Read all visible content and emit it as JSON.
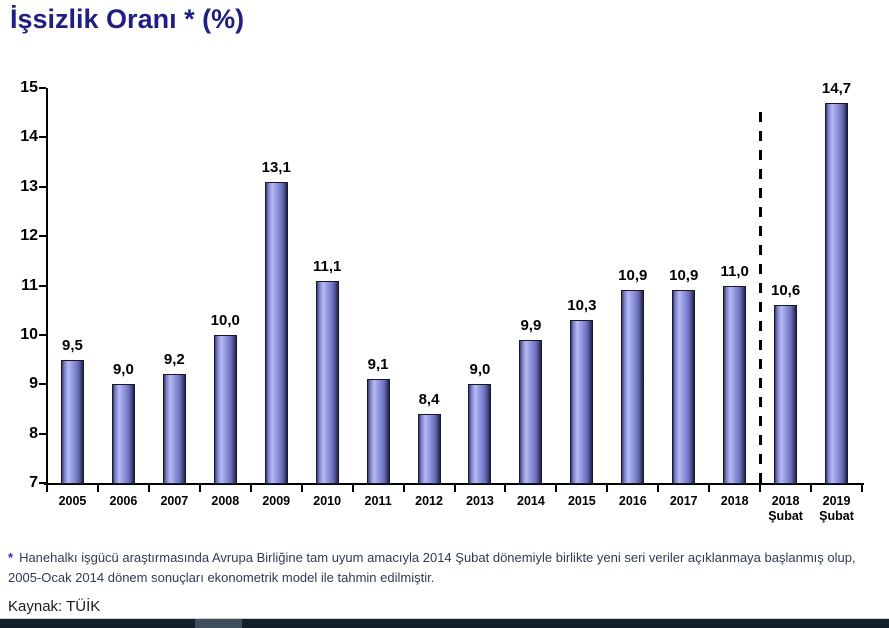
{
  "page": {
    "title": "İşsizlik Oranı * (%)",
    "footnote_marker": "*",
    "footnote_text": "Hanehalkı işgücü araştırmasında Avrupa Birliğine tam uyum amacıyla 2014 Şubat dönemiyle birlikte  yeni seri veriler açıklanmaya başlanmış olup, 2005-Ocak 2014 dönem sonuçları ekonometrik model ile tahmin edilmiştir.",
    "source_label": "Kaynak: TÜİK"
  },
  "chart_data": {
    "type": "bar",
    "title": "İşsizlik Oranı * (%)",
    "xlabel": "",
    "ylabel": "",
    "categories": [
      "2005",
      "2006",
      "2007",
      "2008",
      "2009",
      "2010",
      "2011",
      "2012",
      "2013",
      "2014",
      "2015",
      "2016",
      "2017",
      "2018",
      "2018 Şubat",
      "2019 Şubat"
    ],
    "values": [
      9.5,
      9.0,
      9.2,
      10.0,
      13.1,
      11.1,
      9.1,
      8.4,
      9.0,
      9.9,
      10.3,
      10.9,
      10.9,
      11.0,
      10.6,
      14.7
    ],
    "value_labels": [
      "9,5",
      "9,0",
      "9,2",
      "10,0",
      "13,1",
      "11,1",
      "9,1",
      "8,4",
      "9,0",
      "9,9",
      "10,3",
      "10,9",
      "10,9",
      "11,0",
      "10,6",
      "14,7"
    ],
    "ylim": [
      7,
      15
    ],
    "y_ticks": [
      7,
      8,
      9,
      10,
      11,
      12,
      13,
      14,
      15
    ],
    "grid": false,
    "legend": null,
    "separator_after_index": 13,
    "bar_color": "#8a8fd8",
    "bar_edge_color": "#17172e"
  },
  "colors": {
    "title": "#1f1c8f",
    "footnote_asterisk": "#2b2bd0",
    "footnote_text": "#2f3b52",
    "axis": "#000000",
    "scrollbar_track": "#131f2b",
    "scrollbar_thumb": "#3f4e5c"
  }
}
